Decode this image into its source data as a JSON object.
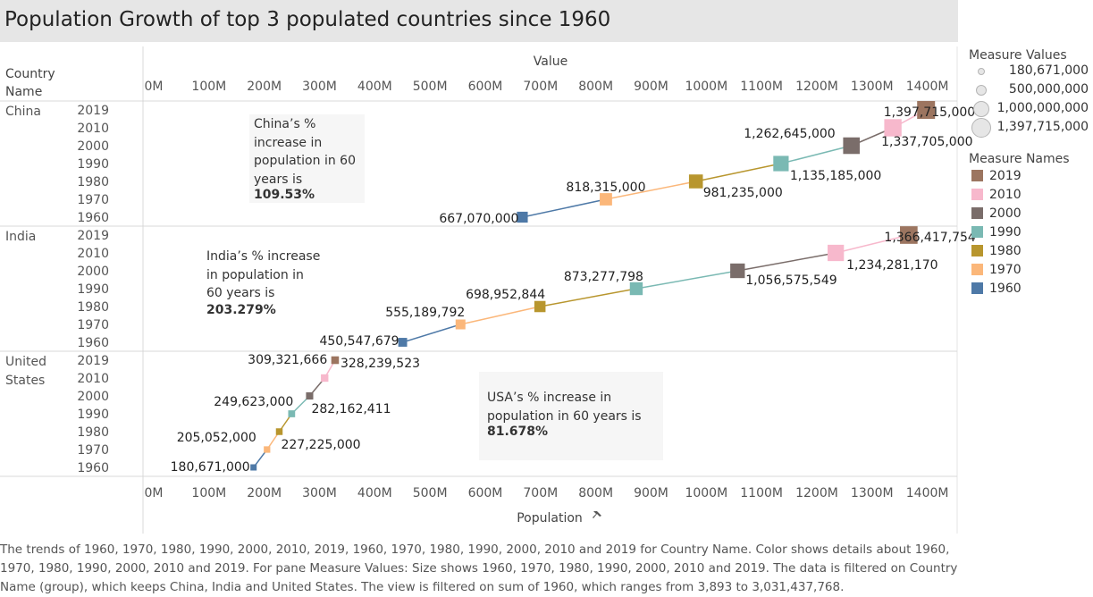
{
  "title": "Population Growth of top 3 populated countries since 1960",
  "row_header": [
    "Country",
    "Name"
  ],
  "col_header_top": "Value",
  "x_axis_title": "Population",
  "x_axis_pin_icon": "pin-icon",
  "chart_data": {
    "type": "line",
    "x_ticks": [
      "0M",
      "100M",
      "200M",
      "300M",
      "400M",
      "500M",
      "600M",
      "700M",
      "800M",
      "900M",
      "1000M",
      "1100M",
      "1200M",
      "1300M",
      "1400M"
    ],
    "xlim": [
      0,
      1400000000
    ],
    "years": [
      "2019",
      "2010",
      "2000",
      "1990",
      "1980",
      "1970",
      "1960"
    ],
    "countries": [
      {
        "name": "China",
        "label_lines": [
          "China"
        ],
        "values": {
          "1960": 667070000,
          "1970": 818315000,
          "1980": 981235000,
          "1990": 1135185000,
          "2000": 1262645000,
          "2010": 1337705000,
          "2019": 1397715000
        },
        "labels": {
          "1960": "667,070,000",
          "1970": "818,315,000",
          "1980": "981,235,000",
          "1990": "1,135,185,000",
          "2000": "1,262,645,000",
          "2010": "1,337,705,000",
          "2019": "1,397,715,000"
        }
      },
      {
        "name": "India",
        "label_lines": [
          "India"
        ],
        "values": {
          "1960": 450547679,
          "1970": 555189792,
          "1980": 698952844,
          "1990": 873277798,
          "2000": 1056575549,
          "2010": 1234281170,
          "2019": 1366417754
        },
        "labels": {
          "1960": "450,547,679",
          "1970": "555,189,792",
          "1980": "698,952,844",
          "1990": "873,277,798",
          "2000": "1,056,575,549",
          "2010": "1,234,281,170",
          "2019": "1,366,417,754"
        }
      },
      {
        "name": "United States",
        "label_lines": [
          "United",
          "States"
        ],
        "values": {
          "1960": 180671000,
          "1970": 205052000,
          "1980": 227225000,
          "1990": 249623000,
          "2000": 282162411,
          "2010": 309321666,
          "2019": 328239523
        },
        "labels": {
          "1960": "180,671,000",
          "1970": "205,052,000",
          "1980": "227,225,000",
          "1990": "249,623,000",
          "2000": "282,162,411",
          "2010": "309,321,666",
          "2019": "328,239,523"
        }
      }
    ],
    "colors": {
      "2019": "#9c7560",
      "2010": "#f7b8cc",
      "2000": "#7a6d6a",
      "1990": "#7ab9b3",
      "1980": "#b8962e",
      "1970": "#fbb77a",
      "1960": "#4e79a7"
    },
    "legend_position": "right"
  },
  "annotations": {
    "china": {
      "lines": [
        "China’s %",
        "increase in",
        "population in 60",
        "years  is"
      ],
      "value": "109.53%"
    },
    "india": {
      "lines": [
        "India’s % increase",
        "in population in",
        "60 years is"
      ],
      "value": "203.279%"
    },
    "usa": {
      "lines": [
        "USA’s  % increase in",
        "population in 60 years   is"
      ],
      "value": "81.678%"
    }
  },
  "legend_values": {
    "title": "Measure Values",
    "items": [
      "180,671,000",
      "500,000,000",
      "1,000,000,000",
      "1,397,715,000"
    ]
  },
  "legend_names": {
    "title": "Measure Names",
    "items": [
      "2019",
      "2010",
      "2000",
      "1990",
      "1980",
      "1970",
      "1960"
    ]
  },
  "caption": "The trends of 1960, 1970, 1980, 1990, 2000, 2010, 2019, 1960, 1970, 1980, 1990, 2000, 2010 and 2019 for Country Name.  Color shows details about 1960, 1970, 1980, 1990, 2000, 2010 and 2019.  For pane Measure Values:  Size shows 1960, 1970, 1980, 1990, 2000, 2010 and 2019. The data is filtered on Country Name (group), which keeps China, India and United States. The view is filtered on sum of 1960, which ranges from 3,893 to 3,031,437,768."
}
